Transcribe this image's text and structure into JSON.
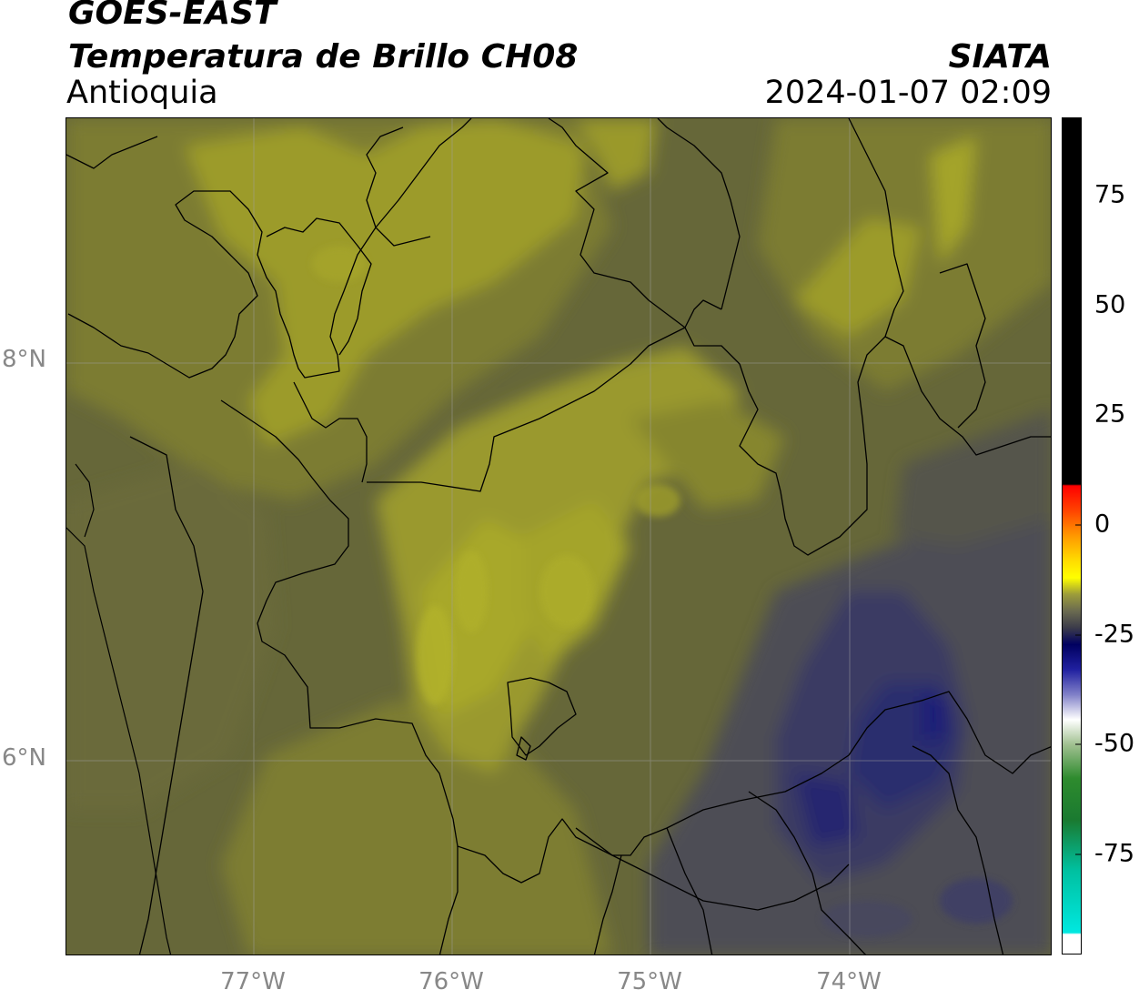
{
  "header": {
    "satellite": "GOES-EAST",
    "product": "Temperatura de Brillo CH08",
    "region": "Antioquia",
    "agency": "SIATA",
    "datetime": "2024-01-07 02:09"
  },
  "axes": {
    "latitude_labels": [
      "8°N",
      "6°N"
    ],
    "longitude_labels": [
      "77°W",
      "76°W",
      "75°W",
      "74°W"
    ]
  },
  "colorbar": {
    "ticks": [
      "75",
      "50",
      "25",
      "0",
      "-25",
      "-50",
      "-75"
    ],
    "colors": {
      "warm_limit": "#000000",
      "red": "#ff0000",
      "orange": "#ff9900",
      "yellow": "#ffff00",
      "olive": "#9c9c3a",
      "dark_gray": "#3b3b4a",
      "navy": "#000080",
      "white": "#ffffff",
      "green": "#2e8b2e",
      "cyan": "#00e0e0"
    }
  },
  "map": {
    "colors": {
      "background": "#666739",
      "olive_bright": "#9e9d2a",
      "olive_mid": "#86862f",
      "slate": "#4c4c52",
      "indigo": "#35366a",
      "navy_core": "#1c1d72",
      "border_line": "#000000",
      "grid_line": "#a0a0a0"
    }
  }
}
